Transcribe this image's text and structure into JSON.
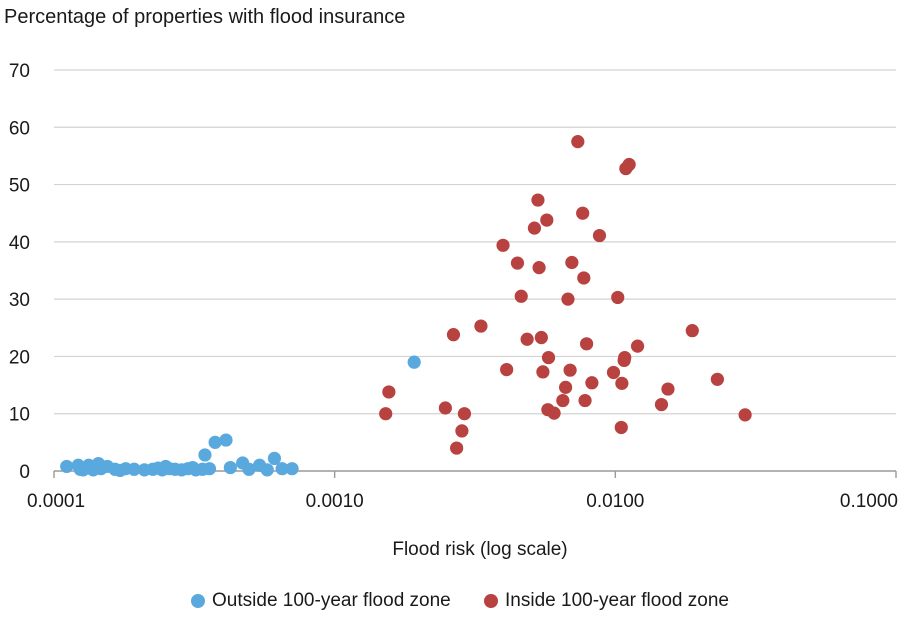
{
  "chart_data": {
    "type": "scatter",
    "title": "Percentage of properties with flood insurance",
    "xlabel": "Flood risk (log scale)",
    "ylabel": "",
    "x_scale": "log",
    "xlim": [
      0.0001,
      0.1
    ],
    "ylim": [
      0,
      70
    ],
    "x_ticks": [
      0.0001,
      0.001,
      0.01,
      0.1
    ],
    "x_tick_labels": [
      "0.0001",
      "0.0010",
      "0.0100",
      "0.1000"
    ],
    "y_ticks": [
      0,
      10,
      20,
      30,
      40,
      50,
      60,
      70
    ],
    "y_tick_labels": [
      "0",
      "10",
      "20",
      "30",
      "40",
      "50",
      "60",
      "70"
    ],
    "grid": "horizontal",
    "legend_position": "bottom",
    "series": [
      {
        "name": "Outside 100-year flood zone",
        "color": "#5aa9de",
        "points": [
          [
            0.000111,
            0.8
          ],
          [
            0.000122,
            1.0
          ],
          [
            0.000124,
            0.3
          ],
          [
            0.000127,
            0.2
          ],
          [
            0.00013,
            0.6
          ],
          [
            0.000133,
            1.0
          ],
          [
            0.000136,
            0.4
          ],
          [
            0.000138,
            0.2
          ],
          [
            0.00014,
            0.7
          ],
          [
            0.000144,
            1.3
          ],
          [
            0.000147,
            0.4
          ],
          [
            0.000155,
            0.8
          ],
          [
            0.000165,
            0.3
          ],
          [
            0.000172,
            0.1
          ],
          [
            0.00018,
            0.4
          ],
          [
            0.000193,
            0.3
          ],
          [
            0.00021,
            0.2
          ],
          [
            0.000225,
            0.3
          ],
          [
            0.000235,
            0.5
          ],
          [
            0.000243,
            0.2
          ],
          [
            0.00025,
            0.8
          ],
          [
            0.000258,
            0.4
          ],
          [
            0.00027,
            0.3
          ],
          [
            0.000285,
            0.2
          ],
          [
            0.0003,
            0.4
          ],
          [
            0.000312,
            0.6
          ],
          [
            0.00032,
            0.2
          ],
          [
            0.000338,
            0.3
          ],
          [
            0.000345,
            2.8
          ],
          [
            0.000358,
            0.4
          ],
          [
            0.000375,
            5.0
          ],
          [
            0.00041,
            5.4
          ],
          [
            0.000425,
            0.6
          ],
          [
            0.00047,
            1.4
          ],
          [
            0.000495,
            0.3
          ],
          [
            0.00054,
            1.0
          ],
          [
            0.000575,
            0.2
          ],
          [
            0.00061,
            2.2
          ],
          [
            0.00065,
            0.4
          ],
          [
            0.000705,
            0.4
          ],
          [
            0.00192,
            19.0
          ]
        ]
      },
      {
        "name": "Inside 100-year flood zone",
        "color": "#b84240",
        "points": [
          [
            0.00152,
            10.0
          ],
          [
            0.00156,
            13.8
          ],
          [
            0.00248,
            11.0
          ],
          [
            0.00265,
            23.8
          ],
          [
            0.00272,
            4.0
          ],
          [
            0.00284,
            7.0
          ],
          [
            0.0029,
            10.0
          ],
          [
            0.00332,
            25.3
          ],
          [
            0.00398,
            39.4
          ],
          [
            0.0041,
            17.7
          ],
          [
            0.00448,
            36.3
          ],
          [
            0.00462,
            30.5
          ],
          [
            0.00485,
            23.0
          ],
          [
            0.00515,
            42.4
          ],
          [
            0.0053,
            47.3
          ],
          [
            0.00535,
            35.5
          ],
          [
            0.00545,
            23.3
          ],
          [
            0.00552,
            17.3
          ],
          [
            0.0057,
            43.8
          ],
          [
            0.00575,
            10.7
          ],
          [
            0.00578,
            19.8
          ],
          [
            0.00605,
            10.1
          ],
          [
            0.0065,
            12.3
          ],
          [
            0.00665,
            14.6
          ],
          [
            0.00678,
            30.0
          ],
          [
            0.0069,
            17.6
          ],
          [
            0.007,
            36.4
          ],
          [
            0.00735,
            57.5
          ],
          [
            0.00765,
            45.0
          ],
          [
            0.00772,
            33.7
          ],
          [
            0.0078,
            12.3
          ],
          [
            0.0079,
            22.2
          ],
          [
            0.00825,
            15.4
          ],
          [
            0.00878,
            41.1
          ],
          [
            0.00985,
            17.2
          ],
          [
            0.0102,
            30.3
          ],
          [
            0.0105,
            7.6
          ],
          [
            0.01055,
            15.3
          ],
          [
            0.01075,
            19.3
          ],
          [
            0.0108,
            19.8
          ],
          [
            0.0109,
            52.8
          ],
          [
            0.0112,
            53.5
          ],
          [
            0.012,
            21.8
          ],
          [
            0.0146,
            11.6
          ],
          [
            0.0154,
            14.3
          ],
          [
            0.0188,
            24.5
          ],
          [
            0.0231,
            16.0
          ],
          [
            0.029,
            9.8
          ]
        ]
      }
    ]
  }
}
